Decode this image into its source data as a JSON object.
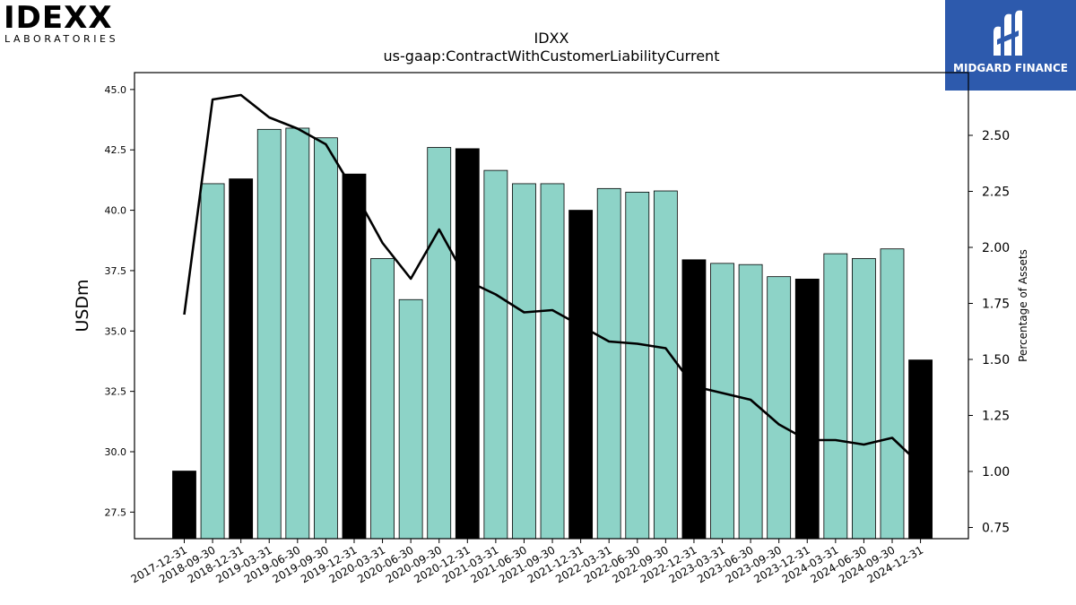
{
  "logos": {
    "left_word": "IDEXX",
    "left_sub": "LABORATORIES",
    "right_name": "MIDGARD FINANCE"
  },
  "chart_data": {
    "type": "bar",
    "title": "IDXX",
    "subtitle": "us-gaap:ContractWithCustomerLiabilityCurrent",
    "ylabel": "USDm",
    "y2label": "Percentage of Assets",
    "ylim": [
      26.4,
      45.7
    ],
    "y2lim": [
      0.7,
      2.78
    ],
    "yticks": [
      "27.5",
      "30.0",
      "32.5",
      "35.0",
      "37.5",
      "40.0",
      "42.5",
      "45.0"
    ],
    "y2ticks": [
      "0.75",
      "1.00",
      "1.25",
      "1.50",
      "1.75",
      "2.00",
      "2.25",
      "2.50"
    ],
    "categories": [
      "2017-12-31",
      "2018-09-30",
      "2018-12-31",
      "2019-03-31",
      "2019-06-30",
      "2019-09-30",
      "2019-12-31",
      "2020-03-31",
      "2020-06-30",
      "2020-09-30",
      "2020-12-31",
      "2021-03-31",
      "2021-06-30",
      "2021-09-30",
      "2021-12-31",
      "2022-03-31",
      "2022-06-30",
      "2022-09-30",
      "2022-12-31",
      "2023-03-31",
      "2023-06-30",
      "2023-09-30",
      "2023-12-31",
      "2024-03-31",
      "2024-06-30",
      "2024-09-30",
      "2024-12-31"
    ],
    "values": [
      29.2,
      41.1,
      41.3,
      43.35,
      43.4,
      43.0,
      41.5,
      38.0,
      36.3,
      42.6,
      42.55,
      41.65,
      41.1,
      41.1,
      40.0,
      40.9,
      40.75,
      40.8,
      37.95,
      37.8,
      37.75,
      37.25,
      37.15,
      38.2,
      38.0,
      38.4,
      33.8
    ],
    "annual": [
      true,
      false,
      true,
      false,
      false,
      false,
      true,
      false,
      false,
      false,
      true,
      false,
      false,
      false,
      true,
      false,
      false,
      false,
      true,
      false,
      false,
      false,
      true,
      false,
      false,
      false,
      true
    ],
    "line_values": [
      1.7,
      2.66,
      2.68,
      2.58,
      2.53,
      2.46,
      2.25,
      2.02,
      1.86,
      2.08,
      1.85,
      1.79,
      1.71,
      1.72,
      1.65,
      1.58,
      1.57,
      1.55,
      1.38,
      1.35,
      1.32,
      1.21,
      1.14,
      1.14,
      1.12,
      1.15,
      1.03
    ],
    "colors": {
      "annual_bar": "#000000",
      "quarter_bar": "#8dd3c7",
      "line": "#000000"
    },
    "grid": false
  }
}
